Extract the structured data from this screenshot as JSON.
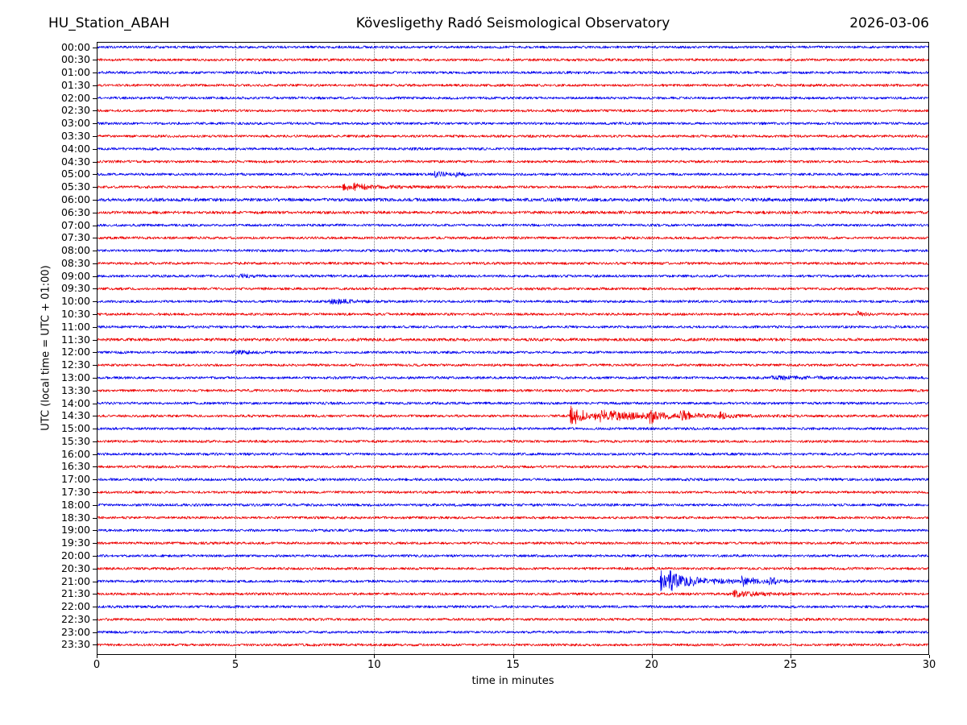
{
  "header": {
    "station": "HU_Station_ABAH",
    "observatory": "Kövesligethy Radó Seismological Observatory",
    "date": "2026-03-06"
  },
  "chart_data": {
    "type": "line",
    "subtype": "helicorder-day-plot",
    "station": "HU_Station_ABAH",
    "title": "Kövesligethy Radó Seismological Observatory",
    "date": "2026-03-06",
    "xlabel": "time in minutes",
    "ylabel": "UTC (local time = UTC + 01:00)",
    "xlim": [
      0,
      30
    ],
    "x_ticks": [
      0,
      5,
      10,
      15,
      20,
      25,
      30
    ],
    "grid": "vertical-dotted",
    "legend": "none",
    "row_interval_minutes": 30,
    "trace_colors": {
      "hour_row": "#0000ee",
      "half_hour_row": "#ee0000"
    },
    "frame_color": "#000000",
    "rows": [
      {
        "time": "00:00"
      },
      {
        "time": "00:30"
      },
      {
        "time": "01:00"
      },
      {
        "time": "01:30"
      },
      {
        "time": "02:00"
      },
      {
        "time": "02:30"
      },
      {
        "time": "03:00"
      },
      {
        "time": "03:30"
      },
      {
        "time": "04:00"
      },
      {
        "time": "04:30"
      },
      {
        "time": "05:00"
      },
      {
        "time": "05:30"
      },
      {
        "time": "06:00"
      },
      {
        "time": "06:30"
      },
      {
        "time": "07:00"
      },
      {
        "time": "07:30"
      },
      {
        "time": "08:00"
      },
      {
        "time": "08:30"
      },
      {
        "time": "09:00"
      },
      {
        "time": "09:30"
      },
      {
        "time": "10:00"
      },
      {
        "time": "10:30"
      },
      {
        "time": "11:00"
      },
      {
        "time": "11:30"
      },
      {
        "time": "12:00"
      },
      {
        "time": "12:30"
      },
      {
        "time": "13:00"
      },
      {
        "time": "13:30"
      },
      {
        "time": "14:00"
      },
      {
        "time": "14:30"
      },
      {
        "time": "15:00"
      },
      {
        "time": "15:30"
      },
      {
        "time": "16:00"
      },
      {
        "time": "16:30"
      },
      {
        "time": "17:00"
      },
      {
        "time": "17:30"
      },
      {
        "time": "18:00"
      },
      {
        "time": "18:30"
      },
      {
        "time": "19:00"
      },
      {
        "time": "19:30"
      },
      {
        "time": "20:00"
      },
      {
        "time": "20:30"
      },
      {
        "time": "21:00"
      },
      {
        "time": "21:30"
      },
      {
        "time": "22:00"
      },
      {
        "time": "22:30"
      },
      {
        "time": "23:00"
      },
      {
        "time": "23:30"
      }
    ],
    "background_noise_rel": 1.0,
    "elevated_noise_rows": {
      "06:00": 1.3,
      "06:30": 1.12,
      "11:30": 1.15,
      "17:00": 1.05
    },
    "events": [
      {
        "row": "05:00",
        "bursts": [
          {
            "t": 12.15,
            "peak_rel": 3.6,
            "tau": 0.3
          },
          {
            "t": 12.9,
            "peak_rel": 2.0,
            "tau": 0.3
          }
        ]
      },
      {
        "row": "05:30",
        "bursts": [
          {
            "t": 8.85,
            "peak_rel": 4.6,
            "tau": 0.25
          },
          {
            "t": 9.2,
            "peak_rel": 2.4,
            "tau": 1.1
          }
        ]
      },
      {
        "row": "09:00",
        "bursts": [
          {
            "t": 5.1,
            "peak_rel": 2.0,
            "tau": 0.35
          }
        ]
      },
      {
        "row": "10:00",
        "bursts": [
          {
            "t": 8.35,
            "peak_rel": 3.9,
            "tau": 0.2
          },
          {
            "t": 8.65,
            "peak_rel": 2.0,
            "tau": 0.55
          }
        ]
      },
      {
        "row": "10:30",
        "bursts": [
          {
            "t": 27.35,
            "peak_rel": 2.6,
            "tau": 0.25
          }
        ]
      },
      {
        "row": "12:00",
        "bursts": [
          {
            "t": 4.9,
            "peak_rel": 1.8,
            "tau": 0.5
          }
        ]
      },
      {
        "row": "13:00",
        "bursts": [
          {
            "t": 24.3,
            "peak_rel": 1.4,
            "tau": 1.8
          }
        ]
      },
      {
        "row": "14:30",
        "bursts": [
          {
            "t": 17.05,
            "peak_rel": 17.0,
            "tau": 0.1,
            "spike": true
          },
          {
            "t": 17.2,
            "peak_rel": 6.0,
            "tau": 0.9
          },
          {
            "t": 18.1,
            "peak_rel": 3.5,
            "tau": 2.2
          },
          {
            "t": 19.9,
            "peak_rel": 5.5,
            "tau": 0.3
          },
          {
            "t": 21.0,
            "peak_rel": 5.0,
            "tau": 0.35
          },
          {
            "t": 22.4,
            "peak_rel": 3.5,
            "tau": 0.3
          }
        ]
      },
      {
        "row": "21:00",
        "bursts": [
          {
            "t": 20.3,
            "peak_rel": 11.0,
            "tau": 0.4,
            "spike": true
          },
          {
            "t": 20.6,
            "peak_rel": 5.0,
            "tau": 1.5
          },
          {
            "t": 23.2,
            "peak_rel": 5.0,
            "tau": 0.4
          },
          {
            "t": 24.2,
            "peak_rel": 3.0,
            "tau": 0.4
          }
        ]
      },
      {
        "row": "21:30",
        "bursts": [
          {
            "t": 22.9,
            "peak_rel": 3.4,
            "tau": 0.9
          }
        ]
      }
    ]
  }
}
